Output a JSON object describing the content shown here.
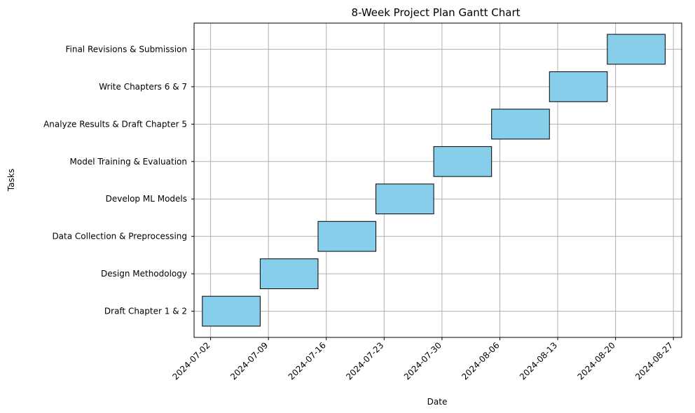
{
  "chart_data": {
    "type": "gantt",
    "title": "8-Week Project Plan Gantt Chart",
    "xlabel": "Date",
    "ylabel": "Tasks",
    "grid": true,
    "bar_color": "#87ceeb",
    "edge_color": "#000000",
    "x_range": [
      "2024-06-30",
      "2024-08-28"
    ],
    "x_ticks": [
      "2024-07-02",
      "2024-07-09",
      "2024-07-16",
      "2024-07-23",
      "2024-07-30",
      "2024-08-06",
      "2024-08-13",
      "2024-08-20",
      "2024-08-27"
    ],
    "tasks": [
      {
        "name": "Draft Chapter 1 & 2",
        "start": "2024-07-01",
        "end": "2024-07-08"
      },
      {
        "name": "Design Methodology",
        "start": "2024-07-08",
        "end": "2024-07-15"
      },
      {
        "name": "Data Collection & Preprocessing",
        "start": "2024-07-15",
        "end": "2024-07-22"
      },
      {
        "name": "Develop ML Models",
        "start": "2024-07-22",
        "end": "2024-07-29"
      },
      {
        "name": "Model Training & Evaluation",
        "start": "2024-07-29",
        "end": "2024-08-05"
      },
      {
        "name": "Analyze Results & Draft Chapter 5",
        "start": "2024-08-05",
        "end": "2024-08-12"
      },
      {
        "name": "Write Chapters 6 & 7",
        "start": "2024-08-12",
        "end": "2024-08-19"
      },
      {
        "name": "Final Revisions & Submission",
        "start": "2024-08-19",
        "end": "2024-08-26"
      }
    ]
  }
}
